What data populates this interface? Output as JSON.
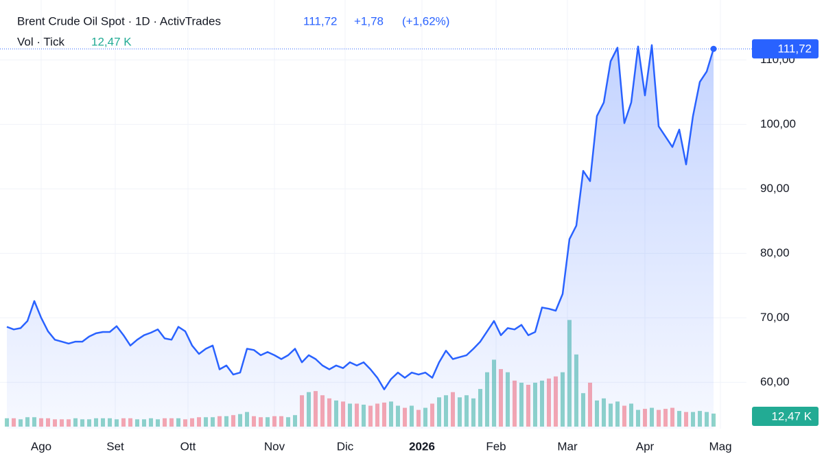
{
  "chart_data": {
    "type": "area",
    "title": "Brent Crude Oil Spot · 1D · ActivTrades",
    "last_label": "111,72",
    "change_label": "+1,78",
    "change_pct_label": "(+1,62%)",
    "volume_title": "Vol · Tick",
    "volume_last_label": "12,47 K",
    "price": {
      "color": "#2962ff",
      "values": [
        68.6,
        68.2,
        68.4,
        69.5,
        72.6,
        70.0,
        67.9,
        66.6,
        66.3,
        66.0,
        66.3,
        66.3,
        67.1,
        67.6,
        67.8,
        67.8,
        68.7,
        67.3,
        65.7,
        66.6,
        67.3,
        67.7,
        68.2,
        66.8,
        66.6,
        68.6,
        67.9,
        65.7,
        64.4,
        65.2,
        65.7,
        62.0,
        62.6,
        61.2,
        61.5,
        65.2,
        65.0,
        64.2,
        64.7,
        64.2,
        63.6,
        64.2,
        65.2,
        63.1,
        64.2,
        63.6,
        62.6,
        62.0,
        62.6,
        62.2,
        63.1,
        62.6,
        63.1,
        62.0,
        60.7,
        58.9,
        60.5,
        61.5,
        60.7,
        61.5,
        61.2,
        61.5,
        60.7,
        63.1,
        64.9,
        63.6,
        63.9,
        64.2,
        65.2,
        66.3,
        67.9,
        69.5,
        67.3,
        68.4,
        68.2,
        68.9,
        67.3,
        67.8,
        71.6,
        71.4,
        71.1,
        73.7,
        82.2,
        84.3,
        92.8,
        91.2,
        101.3,
        103.4,
        109.8,
        111.9,
        100.2,
        103.4,
        112.1,
        104.5,
        112.3,
        99.7,
        98.1,
        96.5,
        99.2,
        93.8,
        101.3,
        106.6,
        108.2,
        111.72
      ]
    },
    "volume": {
      "up_color": "rgba(34,171,148,0.5)",
      "down_color": "rgba(247,82,95,0.5)",
      "tag_color": "#22ab94",
      "ylim": [
        0,
        408
      ],
      "values": [
        8,
        8,
        7,
        9,
        9,
        8,
        8,
        7,
        7,
        7,
        8,
        7,
        7,
        8,
        8,
        8,
        7,
        8,
        8,
        7,
        7,
        8,
        7,
        8,
        8,
        8,
        7,
        8,
        9,
        9,
        9,
        10,
        10,
        11,
        12,
        14,
        10,
        9,
        9,
        10,
        10,
        9,
        11,
        30,
        33,
        34,
        30,
        27,
        25,
        24,
        22,
        22,
        21,
        20,
        22,
        23,
        24,
        20,
        18,
        20,
        16,
        18,
        22,
        28,
        30,
        33,
        28,
        30,
        27,
        36,
        52,
        64,
        55,
        52,
        44,
        42,
        40,
        42,
        44,
        46,
        48,
        52,
        102,
        69,
        32,
        42,
        25,
        27,
        22,
        24,
        20,
        22,
        16,
        17,
        18,
        16,
        17,
        18,
        15,
        14,
        14,
        15,
        14,
        12.47
      ]
    },
    "xlim": [
      0,
      103
    ],
    "xticks": [
      {
        "value": 5,
        "label": "Ago"
      },
      {
        "value": 15.8,
        "label": "Set"
      },
      {
        "value": 26.4,
        "label": "Ott"
      },
      {
        "value": 39,
        "label": "Nov"
      },
      {
        "value": 49.3,
        "label": "Dic"
      },
      {
        "value": 60.5,
        "label": "2026"
      },
      {
        "value": 71.3,
        "label": "Feb"
      },
      {
        "value": 81.7,
        "label": "Mar"
      },
      {
        "value": 93,
        "label": "Apr"
      },
      {
        "value": 104,
        "label": "Mag"
      }
    ],
    "ylim": [
      52.8,
      119.3
    ],
    "yticks": [
      {
        "value": 60,
        "label": "60,00"
      },
      {
        "value": 70,
        "label": "70,00"
      },
      {
        "value": 80,
        "label": "80,00"
      },
      {
        "value": 90,
        "label": "90,00"
      },
      {
        "value": 100,
        "label": "100,00"
      },
      {
        "value": 110,
        "label": "110,00"
      }
    ],
    "grid": true
  }
}
